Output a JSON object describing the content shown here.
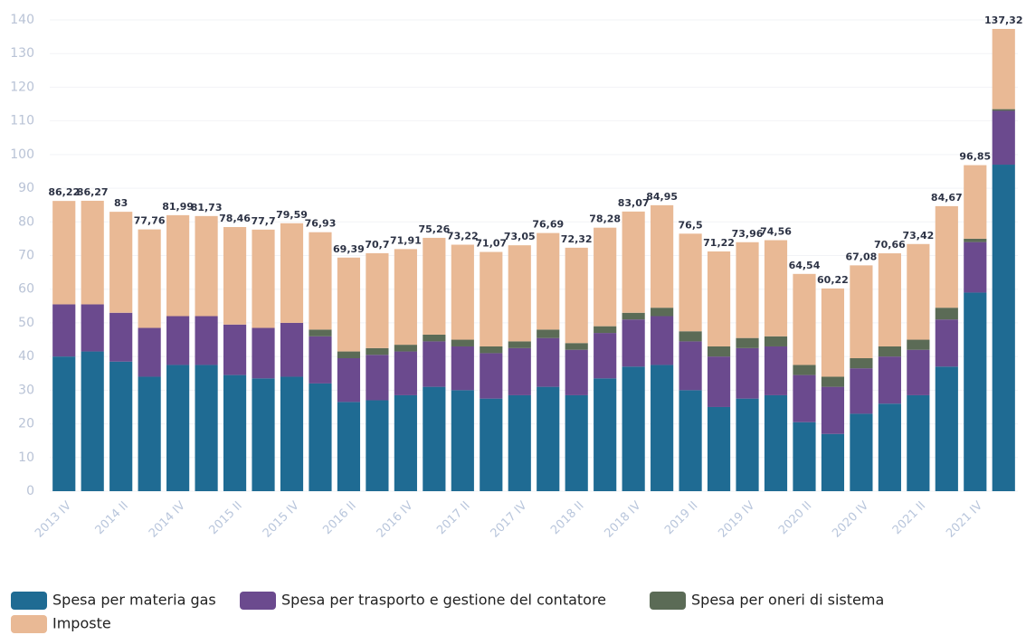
{
  "chart_data": {
    "type": "stacked_bar",
    "categories": [
      "2013 IV",
      null,
      "2014 II",
      null,
      "2014 IV",
      null,
      "2015 II",
      null,
      "2015 IV",
      null,
      "2016 II",
      null,
      "2016 IV",
      null,
      "2017 II",
      null,
      "2017 IV",
      null,
      "2018 II",
      null,
      "2018 IV",
      null,
      "2019 II",
      null,
      "2019 IV",
      null,
      "2020 II",
      null,
      "2020 IV",
      null,
      "2021 II",
      null,
      "2021 IV",
      null
    ],
    "series": [
      {
        "name": "Spesa per materia gas",
        "color": "#1f6b93",
        "values": [
          40,
          41.5,
          38.5,
          34,
          37.5,
          37.5,
          34.5,
          33.5,
          34,
          32,
          26.5,
          27,
          28.5,
          31,
          30,
          27.5,
          28.5,
          31,
          28.5,
          33.5,
          37,
          37.5,
          30,
          25,
          27.5,
          28.5,
          20.5,
          17,
          23,
          26,
          28.5,
          37,
          59,
          97
        ]
      },
      {
        "name": "Spesa per trasporto e gestione del contatore",
        "color": "#6b4a8e",
        "values": [
          15.5,
          14,
          14.5,
          14.5,
          14.5,
          14.5,
          15,
          15,
          16,
          14,
          13,
          13.5,
          13,
          13.5,
          13,
          13.5,
          14,
          14.5,
          13.5,
          13.5,
          14,
          14.5,
          14.5,
          15,
          15,
          14.5,
          14,
          14,
          13.5,
          14,
          13.5,
          14,
          15,
          16
        ]
      },
      {
        "name": "Spesa per oneri di sistema",
        "color": "#5b6b56",
        "values": [
          0,
          0,
          0,
          0,
          0,
          0,
          0,
          0,
          0,
          2,
          2,
          2,
          2,
          2,
          2,
          2,
          2,
          2.5,
          2,
          2,
          2,
          2.5,
          3,
          3,
          3,
          3,
          3,
          3,
          3,
          3,
          3,
          3.5,
          1,
          0.5
        ]
      },
      {
        "name": "Imposte",
        "color": "#e9b995",
        "values": [
          30.72,
          30.77,
          30,
          29.26,
          29.99,
          29.73,
          28.96,
          29.2,
          29.59,
          28.93,
          27.89,
          28.2,
          28.41,
          28.76,
          28.22,
          28.07,
          28.55,
          28.69,
          28.32,
          29.28,
          30.07,
          30.45,
          29,
          28.22,
          28.46,
          28.56,
          27.04,
          26.22,
          27.58,
          27.66,
          28.42,
          30.17,
          21.85,
          23.82
        ]
      }
    ],
    "totals": {
      "values": [
        86.22,
        86.27,
        83,
        77.76,
        81.99,
        81.73,
        78.46,
        77.7,
        79.59,
        76.93,
        69.39,
        70.7,
        71.91,
        75.26,
        73.22,
        71.07,
        73.05,
        76.69,
        72.32,
        78.28,
        83.07,
        84.95,
        76.5,
        71.22,
        73.96,
        74.56,
        64.54,
        60.22,
        67.08,
        70.66,
        73.42,
        84.67,
        96.85,
        137.32
      ],
      "value_labels": [
        "86,22",
        "86,27",
        "83",
        "77,76",
        "81,99",
        "81,73",
        "78,46",
        "77,7",
        "79,59",
        "76,93",
        "69,39",
        "70,7",
        "71,91",
        "75,26",
        "73,22",
        "71,07",
        "73,05",
        "76,69",
        "72,32",
        "78,28",
        "83,07",
        "84,95",
        "76,5",
        "71,22",
        "73,96",
        "74,56",
        "64,54",
        "60,22",
        "67,08",
        "70,66",
        "73,42",
        "84,67",
        "96,85",
        "137,32"
      ]
    },
    "ylim": [
      0,
      140
    ],
    "yticks": [
      0,
      10,
      20,
      30,
      40,
      50,
      60,
      70,
      80,
      90,
      100,
      110,
      120,
      130,
      140
    ],
    "grid": true
  }
}
